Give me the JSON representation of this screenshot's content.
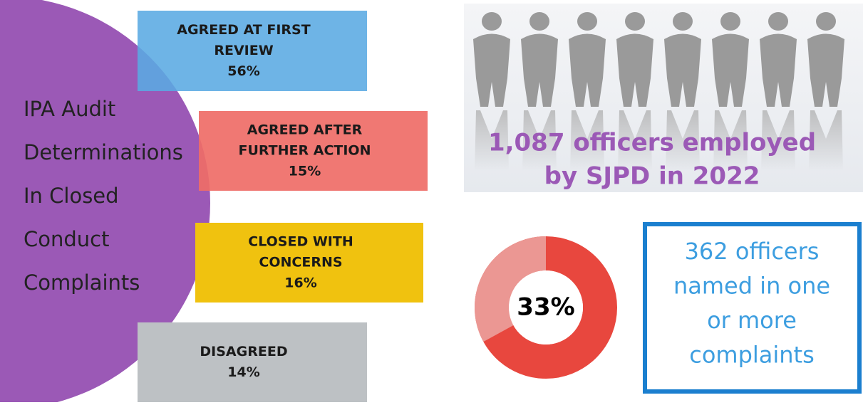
{
  "left_panel": {
    "title_lines": [
      "IPA Audit",
      "Determinations",
      "In Closed",
      "Conduct",
      "Complaints"
    ],
    "boxes": [
      {
        "lines": [
          "AGREED AT FIRST",
          "REVIEW"
        ],
        "percent": "56%"
      },
      {
        "lines": [
          "AGREED AFTER",
          "FURTHER ACTION"
        ],
        "percent": "15%"
      },
      {
        "lines": [
          "CLOSED WITH",
          "CONCERNS"
        ],
        "percent": "16%"
      },
      {
        "lines": [
          "DISAGREED"
        ],
        "percent": "14%"
      }
    ]
  },
  "officers_banner": {
    "lines": [
      "1,087 officers employed",
      "by SJPD in 2022"
    ]
  },
  "donut": {
    "value": 33,
    "label": "33%"
  },
  "complaints_box": {
    "lines": [
      "362 officers",
      "named in one",
      "or more",
      "complaints"
    ]
  }
}
